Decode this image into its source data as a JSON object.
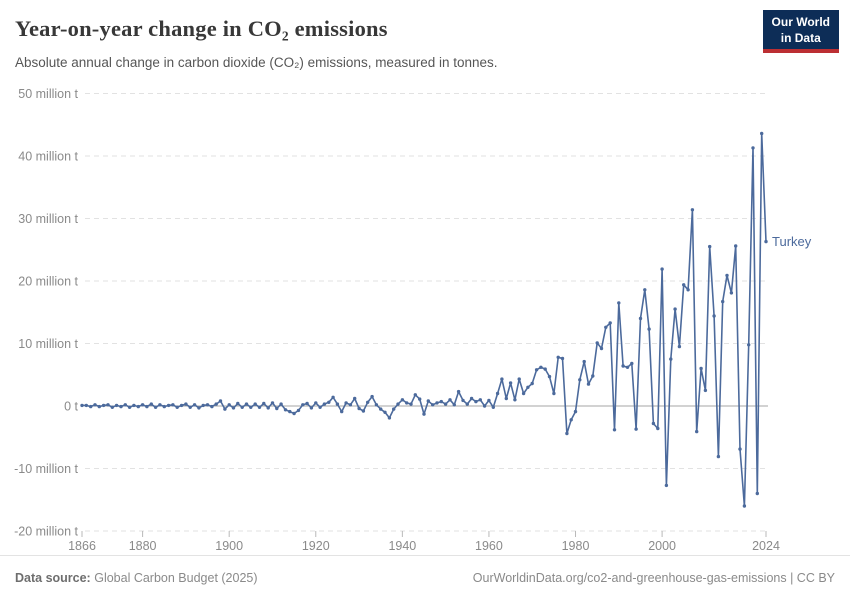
{
  "header": {
    "title": "Year-on-year change in CO₂ emissions",
    "subtitle": "Absolute annual change in carbon dioxide (CO₂) emissions, measured in tonnes.",
    "logo": {
      "line1": "Our World",
      "line2": "in Data"
    }
  },
  "colors": {
    "line": "#4C6A9C",
    "grid": "#e2e2e2",
    "zero_line": "#a6a6a6",
    "axis_tick": "#b9b9b9",
    "logo_bg": "#0d2d57",
    "logo_red": "#bc2f33"
  },
  "chart_data": {
    "type": "line",
    "title": "Year-on-year change in CO₂ emissions",
    "subtitle": "Absolute annual change in carbon dioxide (CO₂) emissions, measured in tonnes.",
    "unit": "million tonnes",
    "xlim": [
      1866,
      2024
    ],
    "ylim": [
      -20,
      50
    ],
    "grid": "horizontal-dashed",
    "legend_position": "end-of-line-label",
    "xticks": [
      1866,
      1880,
      1900,
      1920,
      1940,
      1960,
      1980,
      2000,
      2024
    ],
    "yticks": [
      {
        "value": 50,
        "label": "50 million t"
      },
      {
        "value": 40,
        "label": "40 million t"
      },
      {
        "value": 30,
        "label": "30 million t"
      },
      {
        "value": 20,
        "label": "20 million t"
      },
      {
        "value": 10,
        "label": "10 million t"
      },
      {
        "value": 0,
        "label": "0 t"
      },
      {
        "value": -10,
        "label": "-10 million t"
      },
      {
        "value": -20,
        "label": "-20 million t"
      }
    ],
    "x": [
      1866,
      1867,
      1868,
      1869,
      1870,
      1871,
      1872,
      1873,
      1874,
      1875,
      1876,
      1877,
      1878,
      1879,
      1880,
      1881,
      1882,
      1883,
      1884,
      1885,
      1886,
      1887,
      1888,
      1889,
      1890,
      1891,
      1892,
      1893,
      1894,
      1895,
      1896,
      1897,
      1898,
      1899,
      1900,
      1901,
      1902,
      1903,
      1904,
      1905,
      1906,
      1907,
      1908,
      1909,
      1910,
      1911,
      1912,
      1913,
      1914,
      1915,
      1916,
      1917,
      1918,
      1919,
      1920,
      1921,
      1922,
      1923,
      1924,
      1925,
      1926,
      1927,
      1928,
      1929,
      1930,
      1931,
      1932,
      1933,
      1934,
      1935,
      1936,
      1937,
      1938,
      1939,
      1940,
      1941,
      1942,
      1943,
      1944,
      1945,
      1946,
      1947,
      1948,
      1949,
      1950,
      1951,
      1952,
      1953,
      1954,
      1955,
      1956,
      1957,
      1958,
      1959,
      1960,
      1961,
      1962,
      1963,
      1964,
      1965,
      1966,
      1967,
      1968,
      1969,
      1970,
      1971,
      1972,
      1973,
      1974,
      1975,
      1976,
      1977,
      1978,
      1979,
      1980,
      1981,
      1982,
      1983,
      1984,
      1985,
      1986,
      1987,
      1988,
      1989,
      1990,
      1991,
      1992,
      1993,
      1994,
      1995,
      1996,
      1997,
      1998,
      1999,
      2000,
      2001,
      2002,
      2003,
      2004,
      2005,
      2006,
      2007,
      2008,
      2009,
      2010,
      2011,
      2012,
      2013,
      2014,
      2015,
      2016,
      2017,
      2018,
      2019,
      2020,
      2021,
      2022,
      2023,
      2024
    ],
    "series": [
      {
        "name": "Turkey",
        "values": [
          0.1,
          0.1,
          -0.1,
          0.2,
          -0.1,
          0.1,
          0.2,
          -0.2,
          0.1,
          -0.1,
          0.2,
          -0.2,
          0.1,
          -0.1,
          0.2,
          -0.1,
          0.3,
          -0.2,
          0.2,
          -0.1,
          0.1,
          0.2,
          -0.2,
          0.1,
          0.3,
          -0.2,
          0.2,
          -0.3,
          0.1,
          0.2,
          -0.1,
          0.3,
          0.8,
          -0.5,
          0.2,
          -0.3,
          0.4,
          -0.2,
          0.3,
          -0.2,
          0.3,
          -0.2,
          0.4,
          -0.3,
          0.5,
          -0.4,
          0.3,
          -0.6,
          -0.9,
          -1.2,
          -0.7,
          0.2,
          0.4,
          -0.3,
          0.5,
          -0.2,
          0.3,
          0.6,
          1.4,
          0.3,
          -0.9,
          0.5,
          0.2,
          1.2,
          -0.4,
          -0.8,
          0.6,
          1.5,
          0.2,
          -0.5,
          -1.0,
          -1.9,
          -0.5,
          0.3,
          1.0,
          0.5,
          0.3,
          1.8,
          1.1,
          -1.3,
          0.8,
          0.2,
          0.5,
          0.7,
          0.3,
          1.0,
          0.2,
          2.3,
          0.9,
          0.3,
          1.2,
          0.7,
          1.0,
          0.0,
          0.9,
          -0.2,
          2.0,
          4.3,
          1.2,
          3.7,
          1.0,
          4.3,
          2.0,
          3.0,
          3.6,
          5.8,
          6.2,
          5.9,
          4.7,
          2.0,
          7.8,
          7.6,
          -4.4,
          -2.2,
          -0.9,
          4.2,
          7.1,
          3.5,
          4.8,
          10.1,
          9.2,
          12.6,
          13.3,
          -3.8,
          16.5,
          6.4,
          6.2,
          6.8,
          -3.7,
          14.0,
          18.6,
          12.3,
          -2.8,
          -3.6,
          21.9,
          -12.7,
          7.5,
          15.5,
          9.5,
          19.4,
          18.6,
          31.4,
          -4.1,
          6.0,
          2.5,
          25.5,
          14.4,
          -8.1,
          16.7,
          20.9,
          18.1,
          25.6,
          -6.9,
          -16.0,
          9.8,
          41.3,
          -14.0,
          43.6,
          26.3
        ]
      }
    ]
  },
  "footer": {
    "datasource_label": "Data source:",
    "datasource_value": "Global Carbon Budget (2025)",
    "link": "OurWorldinData.org/co2-and-greenhouse-gas-emissions | CC BY"
  }
}
